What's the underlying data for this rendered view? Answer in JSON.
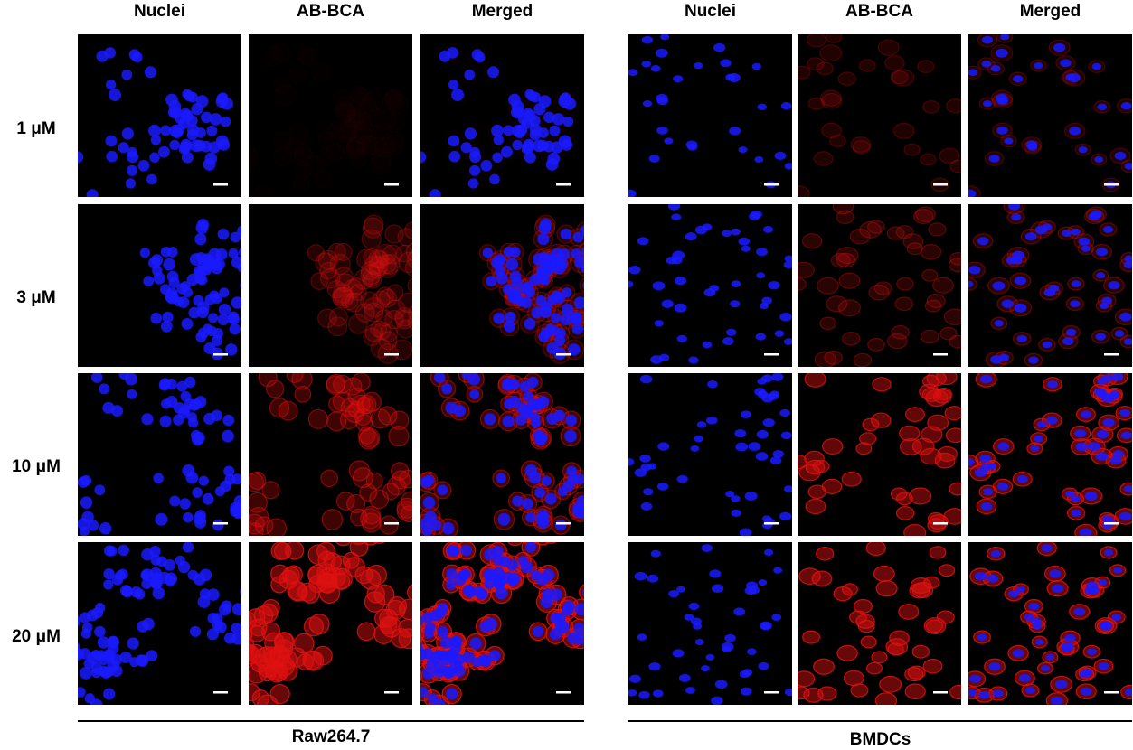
{
  "groups": [
    {
      "name": "Raw264.7",
      "columns": [
        "Nuclei",
        "AB-BCA",
        "Merged"
      ]
    },
    {
      "name": "BMDCs",
      "columns": [
        "Nuclei",
        "AB-BCA",
        "Merged"
      ]
    }
  ],
  "rows": [
    "1 μM",
    "3 μM",
    "10 μM",
    "20 μM"
  ],
  "colors": {
    "nuclei": "#1a1aff",
    "ab_bca": "#e01010",
    "background": "#000000",
    "scale_bar": "#ffffff"
  }
}
